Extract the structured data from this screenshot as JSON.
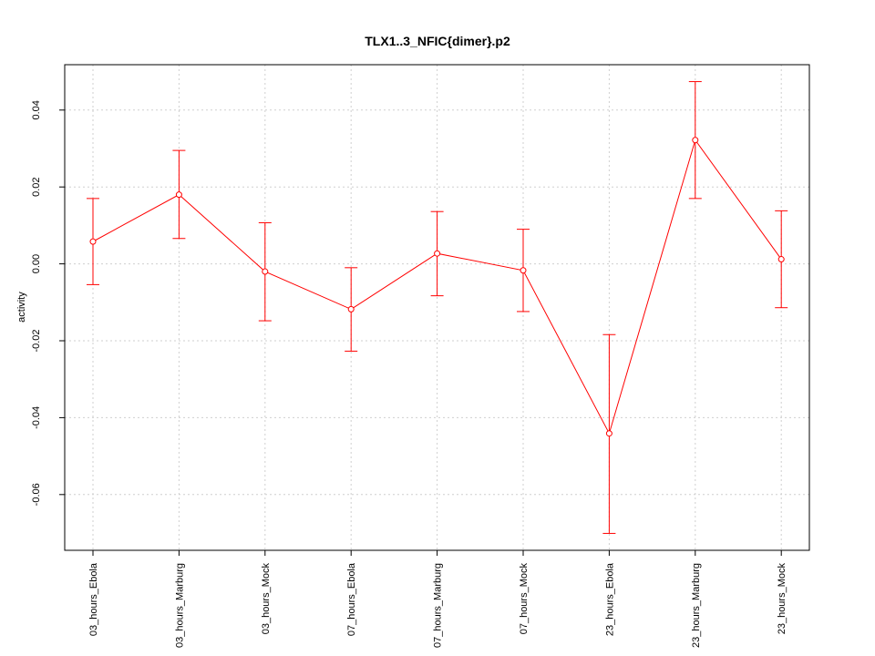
{
  "chart_data": {
    "type": "line",
    "title": "TLX1..3_NFIC{dimer}.p2",
    "xlabel": "",
    "ylabel": "activity",
    "categories": [
      "03_hours_Ebola",
      "03_hours_Marburg",
      "03_hours_Mock",
      "07_hours_Ebola",
      "07_hours_Marburg",
      "07_hours_Mock",
      "23_hours_Ebola",
      "23_hours_Marburg",
      "23_hours_Mock"
    ],
    "values": [
      0.0058,
      0.018,
      -0.002,
      -0.0118,
      0.0027,
      -0.0017,
      -0.0441,
      0.0322,
      0.0012
    ],
    "error_upper": [
      0.017,
      0.0295,
      0.0107,
      -0.001,
      0.0136,
      0.009,
      -0.0184,
      0.0474,
      0.0138
    ],
    "error_lower": [
      -0.0054,
      0.0066,
      -0.0148,
      -0.0227,
      -0.0083,
      -0.0124,
      -0.0701,
      0.017,
      -0.0114
    ],
    "yticks": [
      -0.06,
      -0.04,
      -0.02,
      0.0,
      0.02,
      0.04
    ],
    "ytick_labels": [
      "-0.06",
      "-0.04",
      "-0.02",
      "0.00",
      "0.02",
      "0.04"
    ],
    "ylim": [
      -0.0745,
      0.0518
    ],
    "grid": true,
    "series_color": "#ff0000",
    "grid_color": "#cfcfcf"
  }
}
